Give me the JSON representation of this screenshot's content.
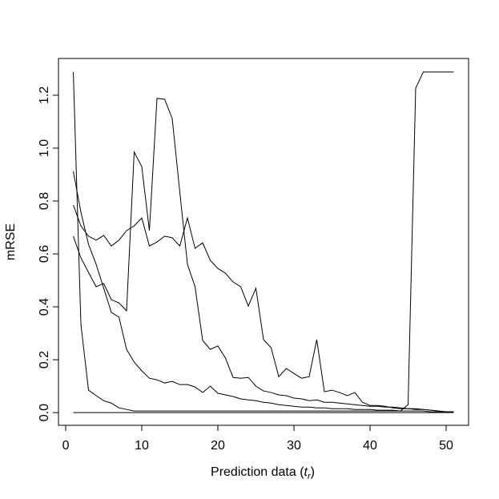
{
  "chart_data": {
    "type": "line",
    "xlabel_parts": [
      "Prediction data (",
      "t",
      "r",
      ")"
    ],
    "ylabel": "mRSE",
    "x": [
      1,
      2,
      3,
      4,
      5,
      6,
      7,
      8,
      9,
      10,
      11,
      12,
      13,
      14,
      15,
      16,
      17,
      18,
      19,
      20,
      21,
      22,
      23,
      24,
      25,
      26,
      27,
      28,
      29,
      30,
      31,
      32,
      33,
      34,
      35,
      36,
      37,
      38,
      39,
      40,
      41,
      42,
      43,
      44,
      45,
      46,
      47,
      48,
      49,
      50,
      51
    ],
    "series": [
      {
        "color": "#000000",
        "values": [
          1.288,
          0.333,
          0.085,
          0.064,
          0.045,
          0.036,
          0.018,
          0.012,
          0.006,
          0.006,
          0.006,
          0.006,
          0.006,
          0.006,
          0.006,
          0.006,
          0.006,
          0.006,
          0.006,
          0.006,
          0.006,
          0.006,
          0.006,
          0.006,
          0.006,
          0.006,
          0.006,
          0.006,
          0.006,
          0.006,
          0.006,
          0.006,
          0.006,
          0.006,
          0.006,
          0.006,
          0.006,
          0.006,
          0.006,
          0.006,
          0.006,
          0.006,
          0.006,
          0.006,
          0.03,
          1.227,
          1.288,
          1.288,
          1.288,
          1.288,
          1.288
        ]
      },
      {
        "color": "#000000",
        "values": [
          0.667,
          0.585,
          0.53,
          0.476,
          0.488,
          0.427,
          0.415,
          0.385,
          0.985,
          0.93,
          0.688,
          1.188,
          1.185,
          1.112,
          0.833,
          0.561,
          0.476,
          0.273,
          0.239,
          0.252,
          0.206,
          0.133,
          0.13,
          0.133,
          0.1,
          0.082,
          0.076,
          0.067,
          0.064,
          0.055,
          0.052,
          0.045,
          0.048,
          0.039,
          0.039,
          0.036,
          0.033,
          0.03,
          0.027,
          0.024,
          0.024,
          0.021,
          0.021,
          0.018,
          0.015,
          0.015,
          0.012,
          0.009,
          0.006,
          0.003,
          0.003
        ]
      },
      {
        "color": "#000000",
        "values": [
          0.785,
          0.706,
          0.667,
          0.652,
          0.67,
          0.63,
          0.652,
          0.688,
          0.706,
          0.736,
          0.63,
          0.645,
          0.667,
          0.661,
          0.63,
          0.736,
          0.621,
          0.642,
          0.576,
          0.545,
          0.527,
          0.494,
          0.476,
          0.403,
          0.47,
          0.276,
          0.245,
          0.136,
          0.167,
          0.148,
          0.13,
          0.136,
          0.276,
          0.079,
          0.085,
          0.076,
          0.064,
          0.076,
          0.039,
          0.027,
          0.027,
          0.024,
          0.018,
          0.015,
          0.015,
          0.012,
          0.012,
          0.009,
          0.006,
          0.003,
          0.003
        ]
      },
      {
        "color": "#000000",
        "values": [
          0.912,
          0.758,
          0.636,
          0.561,
          0.47,
          0.379,
          0.361,
          0.239,
          0.191,
          0.158,
          0.13,
          0.124,
          0.112,
          0.118,
          0.106,
          0.106,
          0.097,
          0.076,
          0.1,
          0.073,
          0.067,
          0.061,
          0.052,
          0.048,
          0.045,
          0.039,
          0.036,
          0.03,
          0.027,
          0.024,
          0.021,
          0.021,
          0.018,
          0.018,
          0.015,
          0.015,
          0.015,
          0.012,
          0.012,
          0.012,
          0.009,
          0.009,
          0.009,
          0.006,
          0.006,
          0.006,
          0.006,
          0.003,
          0.003,
          0.003,
          0.003
        ]
      },
      {
        "color": "#000000",
        "values": [
          0,
          0,
          0,
          0,
          0,
          0,
          0,
          0,
          0,
          0,
          0,
          0,
          0,
          0,
          0,
          0,
          0,
          0,
          0,
          0,
          0,
          0,
          0,
          0,
          0,
          0,
          0,
          0,
          0,
          0,
          0,
          0,
          0,
          0,
          0,
          0,
          0,
          0,
          0,
          0,
          0,
          0,
          0,
          0,
          0,
          0,
          0,
          0,
          0,
          0,
          0
        ]
      }
    ],
    "xlim": [
      -0.95,
      52.95
    ],
    "ylim": [
      -0.048,
      1.339
    ],
    "xticks": [
      0,
      10,
      20,
      30,
      40,
      50
    ],
    "yticks": [
      {
        "value": 0,
        "label": "0.0"
      },
      0.2,
      0.4,
      0.6,
      0.8,
      {
        "value": 1,
        "label": "1.0"
      },
      1.2
    ],
    "grid": false
  }
}
